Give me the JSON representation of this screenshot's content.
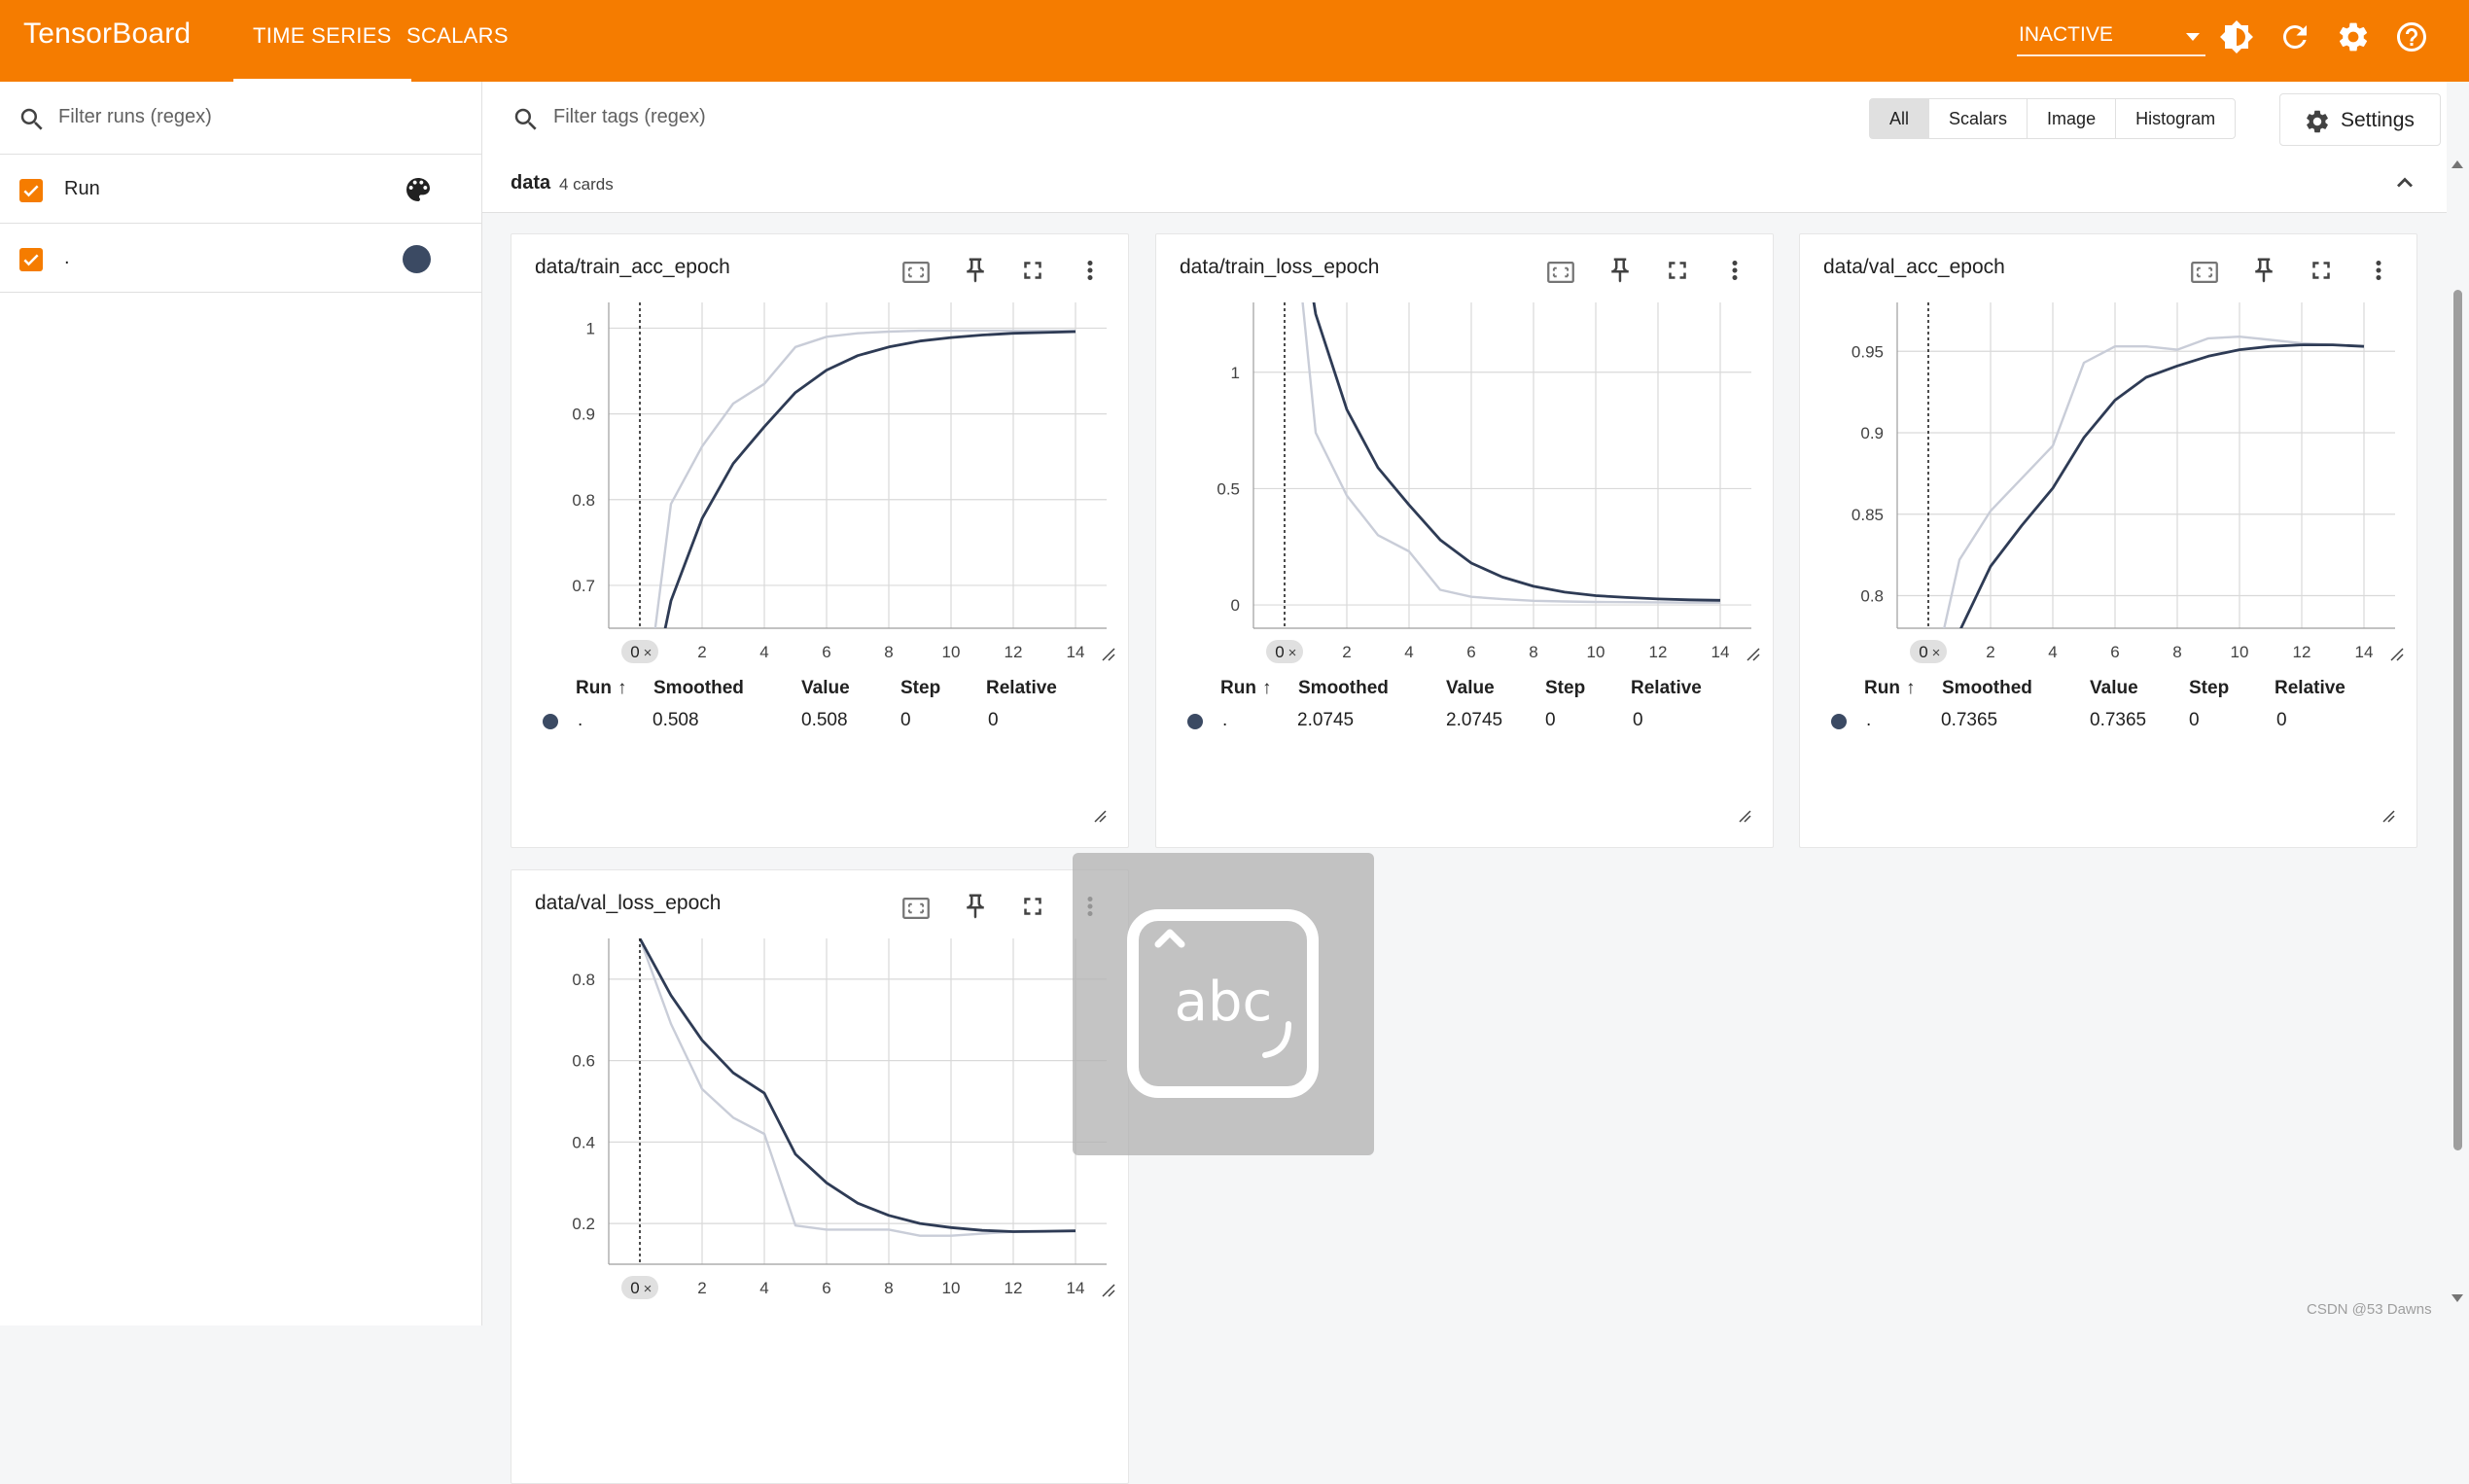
{
  "app": {
    "title": "TensorBoard",
    "accent": "#f57c00",
    "tabs": [
      {
        "label": "TIME SERIES",
        "active": true
      },
      {
        "label": "SCALARS",
        "active": false
      }
    ],
    "status_select": "INACTIVE",
    "icons": [
      "theme-toggle-icon",
      "refresh-icon",
      "settings-gear-icon",
      "help-icon"
    ]
  },
  "sidebar": {
    "filter_placeholder": "Filter runs (regex)",
    "rows": [
      {
        "label": "Run",
        "checked": true,
        "trailing": "palette-icon"
      },
      {
        "label": ".",
        "checked": true,
        "trailing": "run-color-dot",
        "color": "#3b4a63"
      }
    ]
  },
  "main": {
    "filter_placeholder": "Filter tags (regex)",
    "type_filters": [
      {
        "label": "All",
        "selected": true
      },
      {
        "label": "Scalars",
        "selected": false
      },
      {
        "label": "Image",
        "selected": false
      },
      {
        "label": "Histogram",
        "selected": false
      }
    ],
    "settings_label": "Settings",
    "group": {
      "name": "data",
      "count": "4 cards"
    }
  },
  "legend_headers": {
    "run": "Run",
    "smoothed": "Smoothed",
    "value": "Value",
    "step": "Step",
    "relative": "Relative"
  },
  "chart_data": [
    {
      "type": "line",
      "title": "data/train_acc_epoch",
      "xlim": [
        -1,
        15
      ],
      "ylim": [
        0.65,
        1.03
      ],
      "xticks": [
        2,
        4,
        6,
        8,
        10,
        12,
        14
      ],
      "yticks": [
        0.7,
        0.8,
        0.9,
        1
      ],
      "ytick_labels": [
        "0.7",
        "0.8",
        "0.9",
        "1"
      ],
      "cursor_step": 0,
      "cursor_label": "0",
      "series": [
        {
          "name": "raw",
          "color": "#c9cdd8",
          "x": [
            0,
            1,
            2,
            3,
            4,
            5,
            6,
            7,
            8,
            9,
            10,
            11,
            12,
            13,
            14
          ],
          "y": [
            0.508,
            0.795,
            0.862,
            0.912,
            0.935,
            0.978,
            0.99,
            0.994,
            0.996,
            0.997,
            0.997,
            0.997,
            0.997,
            0.997,
            0.997
          ]
        },
        {
          "name": "smoothed",
          "color": "#2e3b55",
          "x": [
            0,
            1,
            2,
            3,
            4,
            5,
            6,
            7,
            8,
            9,
            10,
            11,
            12,
            13,
            14
          ],
          "y": [
            0.508,
            0.682,
            0.778,
            0.842,
            0.885,
            0.925,
            0.951,
            0.968,
            0.978,
            0.985,
            0.989,
            0.992,
            0.994,
            0.995,
            0.996
          ]
        }
      ],
      "legend": {
        "run": ".",
        "smoothed": "0.508",
        "value": "0.508",
        "step": "0",
        "relative": "0"
      }
    },
    {
      "type": "line",
      "title": "data/train_loss_epoch",
      "xlim": [
        -1,
        15
      ],
      "ylim": [
        -0.1,
        1.3
      ],
      "xticks": [
        2,
        4,
        6,
        8,
        10,
        12,
        14
      ],
      "yticks": [
        0,
        0.5,
        1
      ],
      "ytick_labels": [
        "0",
        "0.5",
        "1"
      ],
      "cursor_step": 0,
      "cursor_label": "0",
      "series": [
        {
          "name": "raw",
          "color": "#c9cdd8",
          "x": [
            0,
            1,
            2,
            3,
            4,
            5,
            6,
            7,
            8,
            9,
            10,
            11,
            12,
            13,
            14
          ],
          "y": [
            2.0745,
            0.74,
            0.47,
            0.3,
            0.23,
            0.065,
            0.035,
            0.025,
            0.018,
            0.015,
            0.013,
            0.012,
            0.011,
            0.01,
            0.01
          ]
        },
        {
          "name": "smoothed",
          "color": "#2e3b55",
          "x": [
            0,
            1,
            2,
            3,
            4,
            5,
            6,
            7,
            8,
            9,
            10,
            11,
            12,
            13,
            14
          ],
          "y": [
            2.0745,
            1.25,
            0.84,
            0.59,
            0.43,
            0.28,
            0.18,
            0.12,
            0.08,
            0.055,
            0.04,
            0.032,
            0.026,
            0.022,
            0.02
          ]
        }
      ],
      "legend": {
        "run": ".",
        "smoothed": "2.0745",
        "value": "2.0745",
        "step": "0",
        "relative": "0"
      }
    },
    {
      "type": "line",
      "title": "data/val_acc_epoch",
      "xlim": [
        -1,
        15
      ],
      "ylim": [
        0.78,
        0.98
      ],
      "xticks": [
        2,
        4,
        6,
        8,
        10,
        12,
        14
      ],
      "yticks": [
        0.8,
        0.85,
        0.9,
        0.95
      ],
      "ytick_labels": [
        "0.8",
        "0.85",
        "0.9",
        "0.95"
      ],
      "cursor_step": 0,
      "cursor_label": "0",
      "series": [
        {
          "name": "raw",
          "color": "#c9cdd8",
          "x": [
            0,
            1,
            2,
            3,
            4,
            5,
            6,
            7,
            8,
            9,
            10,
            11,
            12,
            13,
            14
          ],
          "y": [
            0.7365,
            0.822,
            0.852,
            0.872,
            0.892,
            0.943,
            0.953,
            0.953,
            0.951,
            0.958,
            0.959,
            0.957,
            0.955,
            0.954,
            0.953
          ]
        },
        {
          "name": "smoothed",
          "color": "#2e3b55",
          "x": [
            0,
            1,
            2,
            3,
            4,
            5,
            6,
            7,
            8,
            9,
            10,
            11,
            12,
            13,
            14
          ],
          "y": [
            0.7365,
            0.778,
            0.818,
            0.843,
            0.866,
            0.897,
            0.92,
            0.934,
            0.941,
            0.947,
            0.951,
            0.953,
            0.954,
            0.954,
            0.953
          ]
        }
      ],
      "legend": {
        "run": ".",
        "smoothed": "0.7365",
        "value": "0.7365",
        "step": "0",
        "relative": "0"
      }
    },
    {
      "type": "line",
      "title": "data/val_loss_epoch",
      "xlim": [
        -1,
        15
      ],
      "ylim": [
        0.1,
        0.9
      ],
      "xticks": [
        2,
        4,
        6,
        8,
        10,
        12,
        14
      ],
      "yticks": [
        0.2,
        0.4,
        0.6,
        0.8
      ],
      "ytick_labels": [
        "0.2",
        "0.4",
        "0.6",
        "0.8"
      ],
      "cursor_step": 0,
      "cursor_label": "0",
      "series": [
        {
          "name": "raw",
          "color": "#c9cdd8",
          "x": [
            0,
            1,
            2,
            3,
            4,
            5,
            6,
            7,
            8,
            9,
            10,
            11,
            12,
            13,
            14
          ],
          "y": [
            0.9,
            0.69,
            0.53,
            0.46,
            0.42,
            0.195,
            0.185,
            0.185,
            0.185,
            0.17,
            0.17,
            0.175,
            0.18,
            0.18,
            0.182
          ]
        },
        {
          "name": "smoothed",
          "color": "#2e3b55",
          "x": [
            0,
            1,
            2,
            3,
            4,
            5,
            6,
            7,
            8,
            9,
            10,
            11,
            12,
            13,
            14
          ],
          "y": [
            0.9,
            0.76,
            0.65,
            0.57,
            0.52,
            0.37,
            0.3,
            0.25,
            0.22,
            0.2,
            0.19,
            0.183,
            0.18,
            0.181,
            0.182
          ]
        }
      ]
    }
  ],
  "watermark": "CSDN @53   Dawns"
}
